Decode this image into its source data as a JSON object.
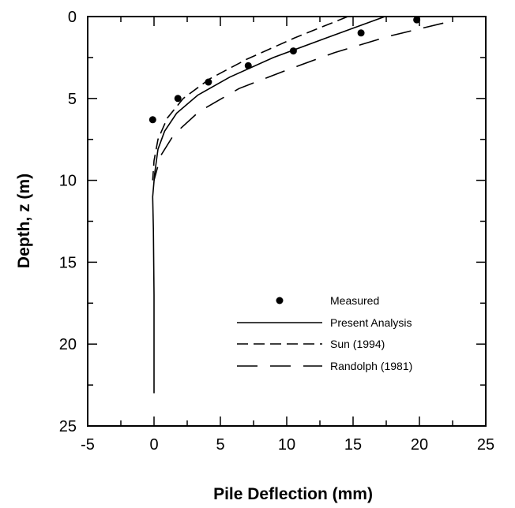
{
  "chart_data": {
    "type": "line",
    "xlabel": "Pile Deflection (mm)",
    "ylabel": "Depth, z (m)",
    "xlim": [
      -5,
      25
    ],
    "ylim": [
      25,
      0
    ],
    "y_inverted": true,
    "x_ticks": [
      -5,
      0,
      5,
      10,
      15,
      20,
      25
    ],
    "y_ticks": [
      0,
      5,
      10,
      15,
      20,
      25
    ],
    "x_tick_labels": [
      "-5",
      "0",
      "5",
      "10",
      "15",
      "20",
      "25"
    ],
    "y_tick_labels": [
      "0",
      "5",
      "10",
      "15",
      "20",
      "25"
    ],
    "grid": false,
    "legend_position": "lower-right",
    "series": [
      {
        "name": "Measured",
        "style": "markers",
        "points": [
          {
            "x": 19.8,
            "y": 0.2
          },
          {
            "x": 15.6,
            "y": 1.0
          },
          {
            "x": 10.5,
            "y": 2.1
          },
          {
            "x": 7.1,
            "y": 3.0
          },
          {
            "x": 4.1,
            "y": 4.0
          },
          {
            "x": 1.8,
            "y": 5.0
          },
          {
            "x": -0.1,
            "y": 6.3
          }
        ]
      },
      {
        "name": "Present Analysis",
        "style": "solid",
        "points": [
          {
            "x": 17.4,
            "y": 0
          },
          {
            "x": 13.0,
            "y": 1.3
          },
          {
            "x": 9.0,
            "y": 2.5
          },
          {
            "x": 5.7,
            "y": 3.7
          },
          {
            "x": 3.3,
            "y": 4.8
          },
          {
            "x": 1.7,
            "y": 5.9
          },
          {
            "x": 0.8,
            "y": 7.0
          },
          {
            "x": 0.3,
            "y": 8.1
          },
          {
            "x": 0.05,
            "y": 9.6
          },
          {
            "x": -0.1,
            "y": 11.0
          },
          {
            "x": -0.05,
            "y": 13.0
          },
          {
            "x": 0.0,
            "y": 17.0
          },
          {
            "x": 0.0,
            "y": 23.0
          }
        ]
      },
      {
        "name": "Sun (1994)",
        "style": "dash",
        "points": [
          {
            "x": 14.6,
            "y": 0
          },
          {
            "x": 10.6,
            "y": 1.3
          },
          {
            "x": 7.0,
            "y": 2.6
          },
          {
            "x": 4.2,
            "y": 3.8
          },
          {
            "x": 2.2,
            "y": 5.0
          },
          {
            "x": 1.0,
            "y": 6.2
          },
          {
            "x": 0.3,
            "y": 7.5
          },
          {
            "x": 0.0,
            "y": 8.8
          },
          {
            "x": -0.1,
            "y": 10.0
          }
        ]
      },
      {
        "name": "Randolph (1981)",
        "style": "longdash",
        "points": [
          {
            "x": 21.8,
            "y": 0.4
          },
          {
            "x": 17.7,
            "y": 1.2
          },
          {
            "x": 13.6,
            "y": 2.2
          },
          {
            "x": 9.9,
            "y": 3.3
          },
          {
            "x": 6.4,
            "y": 4.4
          },
          {
            "x": 3.4,
            "y": 5.8
          },
          {
            "x": 1.5,
            "y": 7.2
          },
          {
            "x": 0.5,
            "y": 8.5
          },
          {
            "x": 0.0,
            "y": 10.0
          }
        ]
      }
    ]
  }
}
